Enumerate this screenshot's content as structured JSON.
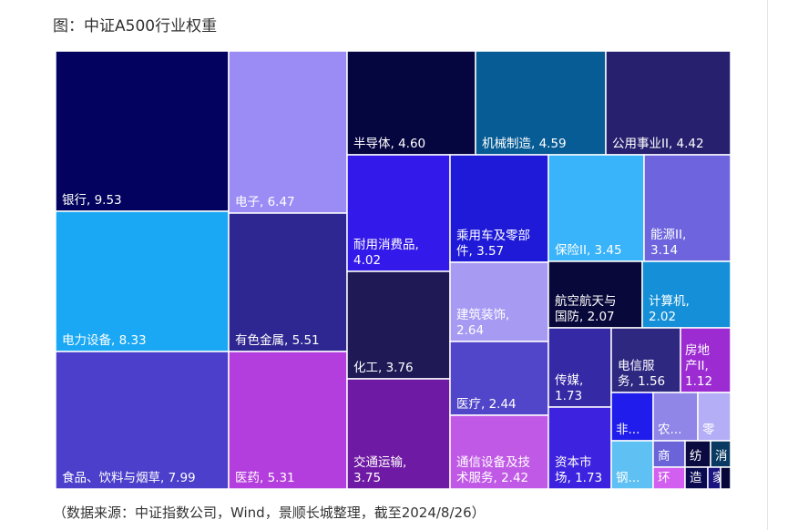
{
  "title": "图：中证A500行业权重",
  "source": "（数据来源：中证指数公司，Wind，景顺长城整理，截至2024/8/26）",
  "chart_data": {
    "type": "treemap",
    "title": "图：中证A500行业权重",
    "items": [
      {
        "name": "银行",
        "value": 9.53,
        "label_lines": [
          "银行, 9.53"
        ],
        "color": "#03035f"
      },
      {
        "name": "电力设备",
        "value": 8.33,
        "label_lines": [
          "电力设备, 8.33"
        ],
        "color": "#1aa8f4"
      },
      {
        "name": "食品、饮料与烟草",
        "value": 7.99,
        "label_lines": [
          "食品、饮料与烟草, 7.99"
        ],
        "color": "#4b3fcb"
      },
      {
        "name": "电子",
        "value": 6.47,
        "label_lines": [
          "电子, 6.47"
        ],
        "color": "#9b8cf5"
      },
      {
        "name": "有色金属",
        "value": 5.51,
        "label_lines": [
          "有色金属, 5.51"
        ],
        "color": "#2f2791"
      },
      {
        "name": "医药",
        "value": 5.31,
        "label_lines": [
          "医药, 5.31"
        ],
        "color": "#b33ddd"
      },
      {
        "name": "半导体",
        "value": 4.6,
        "label_lines": [
          "半导体, 4.60"
        ],
        "color": "#050540"
      },
      {
        "name": "机械制造",
        "value": 4.59,
        "label_lines": [
          "机械制造, 4.59"
        ],
        "color": "#075c95"
      },
      {
        "name": "公用事业II",
        "value": 4.42,
        "label_lines": [
          "公用事业II, 4.42"
        ],
        "color": "#27206e"
      },
      {
        "name": "耐用消费品",
        "value": 4.02,
        "label_lines": [
          "耐用消费品,",
          "4.02"
        ],
        "color": "#3319ea"
      },
      {
        "name": "化工",
        "value": 3.76,
        "label_lines": [
          "化工, 3.76"
        ],
        "color": "#1f1a56"
      },
      {
        "name": "交通运输",
        "value": 3.75,
        "label_lines": [
          "交通运输,",
          "3.75"
        ],
        "color": "#6f1aa4"
      },
      {
        "name": "乘用车及零部件",
        "value": 3.57,
        "label_lines": [
          "乘用车及零部",
          "件, 3.57"
        ],
        "color": "#1e1ad8"
      },
      {
        "name": "建筑装饰",
        "value": 2.64,
        "label_lines": [
          "建筑装饰,",
          "2.64"
        ],
        "color": "#a79af3"
      },
      {
        "name": "医疗",
        "value": 2.44,
        "label_lines": [
          "医疗, 2.44"
        ],
        "color": "#5145c9"
      },
      {
        "name": "通信设备及技术服务",
        "value": 2.42,
        "label_lines": [
          "通信设备及技",
          "术服务, 2.42"
        ],
        "color": "#c05ae6"
      },
      {
        "name": "保险II",
        "value": 3.45,
        "label_lines": [
          "保险II, 3.45"
        ],
        "color": "#39b3fa"
      },
      {
        "name": "能源II",
        "value": 3.14,
        "label_lines": [
          "能源II,",
          "3.14"
        ],
        "color": "#6e65de"
      },
      {
        "name": "航空航天与国防",
        "value": 2.07,
        "label_lines": [
          "航空航天与",
          "国防, 2.07"
        ],
        "color": "#08083a"
      },
      {
        "name": "计算机",
        "value": 2.02,
        "label_lines": [
          "计算机,",
          "2.02"
        ],
        "color": "#1590d8"
      },
      {
        "name": "传媒",
        "value": 1.73,
        "label_lines": [
          "传媒,",
          "1.73"
        ],
        "color": "#3529a5"
      },
      {
        "name": "资本市场",
        "value": 1.73,
        "label_lines": [
          "资本市",
          "场, 1.73"
        ],
        "color": "#3d22df"
      },
      {
        "name": "电信服务",
        "value": 1.56,
        "label_lines": [
          "电信服",
          "务, 1.56"
        ],
        "color": "#2e2880"
      },
      {
        "name": "房地产II",
        "value": 1.12,
        "label_lines": [
          "房地",
          "产II,",
          "1.12"
        ],
        "color": "#9c2bd2"
      },
      {
        "name": "非...",
        "value": null,
        "label_lines": [
          "非..."
        ],
        "color": "#1f1cec"
      },
      {
        "name": "农...",
        "value": null,
        "label_lines": [
          "农..."
        ],
        "color": "#8f86e8"
      },
      {
        "name": "零",
        "value": null,
        "label_lines": [
          "零"
        ],
        "color": "#b4aef7"
      },
      {
        "name": "钢...",
        "value": null,
        "label_lines": [
          "钢..."
        ],
        "color": "#5ec0f3"
      },
      {
        "name": "商",
        "value": null,
        "label_lines": [
          "商"
        ],
        "color": "#6a64d8"
      },
      {
        "name": "纺",
        "value": null,
        "label_lines": [
          "纺"
        ],
        "color": "#0a0a40"
      },
      {
        "name": "消",
        "value": null,
        "label_lines": [
          "消"
        ],
        "color": "#0a3a62"
      },
      {
        "name": "环",
        "value": null,
        "label_lines": [
          "环"
        ],
        "color": "#d35ff0"
      },
      {
        "name": "造",
        "value": null,
        "label_lines": [
          "造"
        ],
        "color": "#0a0a50"
      },
      {
        "name": "家",
        "value": null,
        "label_lines": [
          "家"
        ],
        "color": "#1a1580"
      },
      {
        "name": "",
        "value": null,
        "label_lines": [],
        "color": "#06063a"
      }
    ]
  }
}
